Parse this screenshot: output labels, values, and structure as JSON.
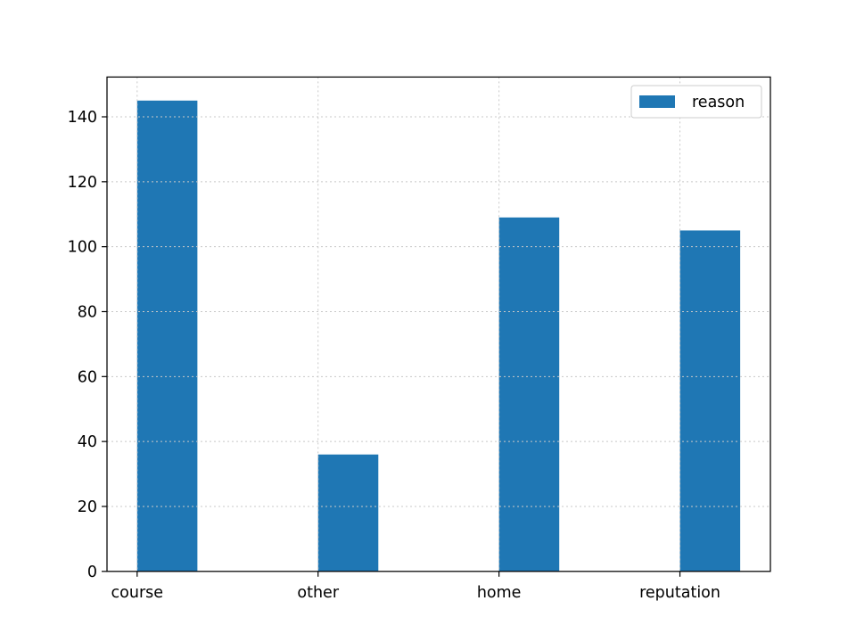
{
  "chart_data": {
    "type": "bar",
    "categories": [
      "course",
      "other",
      "home",
      "reputation"
    ],
    "series": [
      {
        "name": "reason",
        "values": [
          145,
          36,
          109,
          105
        ],
        "color": "#1f77b4"
      }
    ],
    "title": "",
    "xlabel": "",
    "ylabel": "",
    "ylim": [
      0,
      152.25
    ],
    "yticks": [
      0,
      20,
      40,
      60,
      80,
      100,
      120,
      140
    ],
    "grid": true,
    "grid_style": "dotted",
    "legend": "top-right"
  }
}
